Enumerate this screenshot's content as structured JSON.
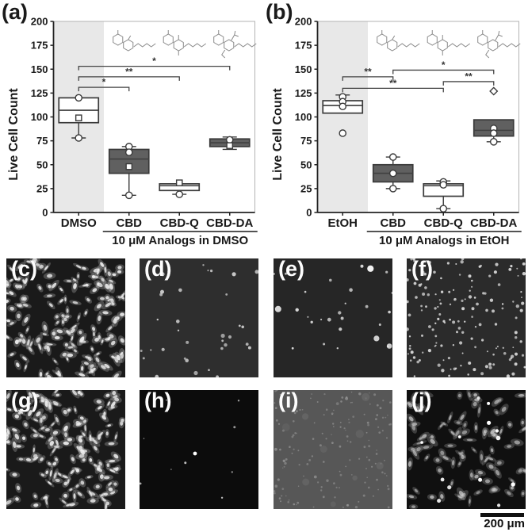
{
  "figure": {
    "scale_bar": {
      "label": "200 μm",
      "color": "#111111"
    },
    "colors": {
      "box_dark": "#606060",
      "box_light": "#ffffff",
      "box_stroke": "#3a3a3a",
      "shaded_band": "#e8e8e8",
      "axis": "#222222",
      "frame": "#b3b3b3",
      "structure": "#8a8a8a",
      "bracket": "#444444"
    }
  },
  "chart_data": [
    {
      "type": "box",
      "panel_label": "(a)",
      "ylabel": "Live Cell Count",
      "ylim": [
        0,
        200
      ],
      "yticks": [
        0,
        25,
        50,
        75,
        100,
        125,
        150,
        175,
        200
      ],
      "categories": [
        "DMSO",
        "CBD",
        "CBD-Q",
        "CBD-DA"
      ],
      "group_label": "10 μM Analogs in DMSO",
      "group_span": [
        1,
        3
      ],
      "shaded_categories": [
        0
      ],
      "boxes": [
        {
          "category": "DMSO",
          "fill": "light",
          "q1": 94,
          "median": 107,
          "q3": 120,
          "whisker_low": 78,
          "whisker_high": null,
          "points": [
            {
              "v": 120,
              "m": "circle"
            },
            {
              "v": 99,
              "m": "square"
            },
            {
              "v": 78,
              "m": "circle"
            }
          ]
        },
        {
          "category": "CBD",
          "fill": "dark",
          "q1": 41,
          "median": 56,
          "q3": 66,
          "whisker_low": 18,
          "whisker_high": 69,
          "points": [
            {
              "v": 69,
              "m": "circle"
            },
            {
              "v": 63,
              "m": "circle"
            },
            {
              "v": 48,
              "m": "square"
            },
            {
              "v": 18,
              "m": "circle"
            }
          ]
        },
        {
          "category": "CBD-Q",
          "fill": "light",
          "q1": 23,
          "median": 28,
          "q3": 30,
          "whisker_low": 19,
          "whisker_high": null,
          "points": [
            {
              "v": 31,
              "m": "square"
            },
            {
              "v": 19,
              "m": "circle"
            }
          ]
        },
        {
          "category": "CBD-DA",
          "fill": "dark",
          "q1": 69,
          "median": 73,
          "q3": 77,
          "whisker_low": 66,
          "whisker_high": 79,
          "points": [
            {
              "v": 76,
              "m": "circle"
            },
            {
              "v": 70,
              "m": "square"
            }
          ]
        }
      ],
      "significance": [
        {
          "from": 0,
          "to": 1,
          "y": 131,
          "label": "*"
        },
        {
          "from": 0,
          "to": 2,
          "y": 142,
          "label": "**"
        },
        {
          "from": 0,
          "to": 3,
          "y": 153,
          "label": "*"
        }
      ],
      "structures": [
        {
          "over": 1,
          "name": "cbd-structure"
        },
        {
          "over": 2,
          "name": "cbd-q-structure"
        },
        {
          "over": 3,
          "name": "cbd-da-structure"
        }
      ]
    },
    {
      "type": "box",
      "panel_label": "(b)",
      "ylabel": "Live Cell Count",
      "ylim": [
        0,
        200
      ],
      "yticks": [
        0,
        25,
        50,
        75,
        100,
        125,
        150,
        175,
        200
      ],
      "categories": [
        "EtOH",
        "CBD",
        "CBD-Q",
        "CBD-DA"
      ],
      "group_label": "10 μM Analogs in EtOH",
      "group_span": [
        1,
        3
      ],
      "shaded_categories": [
        0
      ],
      "boxes": [
        {
          "category": "EtOH",
          "fill": "light",
          "q1": 104,
          "median": 112,
          "q3": 117,
          "whisker_low": null,
          "whisker_high": 123,
          "points": [
            {
              "v": 121,
              "m": "circle"
            },
            {
              "v": 116,
              "m": "circle"
            },
            {
              "v": 111,
              "m": "circle"
            },
            {
              "v": 83,
              "m": "circle"
            }
          ]
        },
        {
          "category": "CBD",
          "fill": "dark",
          "q1": 32,
          "median": 41,
          "q3": 50,
          "whisker_low": 25,
          "whisker_high": 58,
          "points": [
            {
              "v": 58,
              "m": "circle"
            },
            {
              "v": 41,
              "m": "circle"
            },
            {
              "v": 25,
              "m": "circle"
            }
          ]
        },
        {
          "category": "CBD-Q",
          "fill": "light",
          "q1": 17,
          "median": 28,
          "q3": 30,
          "whisker_low": 4,
          "whisker_high": 33,
          "points": [
            {
              "v": 32,
              "m": "circle"
            },
            {
              "v": 29,
              "m": "circle"
            },
            {
              "v": 4,
              "m": "circle"
            }
          ]
        },
        {
          "category": "CBD-DA",
          "fill": "dark",
          "q1": 80,
          "median": 86,
          "q3": 97,
          "whisker_low": 74,
          "whisker_high": null,
          "points": [
            {
              "v": 88,
              "m": "circle"
            },
            {
              "v": 83,
              "m": "circle"
            },
            {
              "v": 74,
              "m": "circle"
            },
            {
              "v": 127,
              "m": "diamond"
            }
          ]
        }
      ],
      "significance": [
        {
          "from": 0,
          "to": 1,
          "y": 142,
          "label": "**"
        },
        {
          "from": 0,
          "to": 2,
          "y": 130,
          "label": "**"
        },
        {
          "from": 1,
          "to": 3,
          "y": 149,
          "label": "*"
        },
        {
          "from": 2,
          "to": 3,
          "y": 137,
          "label": "**"
        }
      ],
      "structures": [
        {
          "over": 1,
          "name": "cbd-structure"
        },
        {
          "over": 2,
          "name": "cbd-q-structure"
        },
        {
          "over": 3,
          "name": "cbd-da-structure"
        }
      ]
    }
  ],
  "micrographs": {
    "panels": [
      {
        "label": "(c)",
        "style": "cells-dense"
      },
      {
        "label": "(d)",
        "style": "dots-sparse"
      },
      {
        "label": "(e)",
        "style": "dots-sparse-large"
      },
      {
        "label": "(f)",
        "style": "dots-many"
      },
      {
        "label": "(g)",
        "style": "cells-dense"
      },
      {
        "label": "(h)",
        "style": "near-black"
      },
      {
        "label": "(i)",
        "style": "gray-speckle"
      },
      {
        "label": "(j)",
        "style": "cells-medium"
      }
    ]
  }
}
